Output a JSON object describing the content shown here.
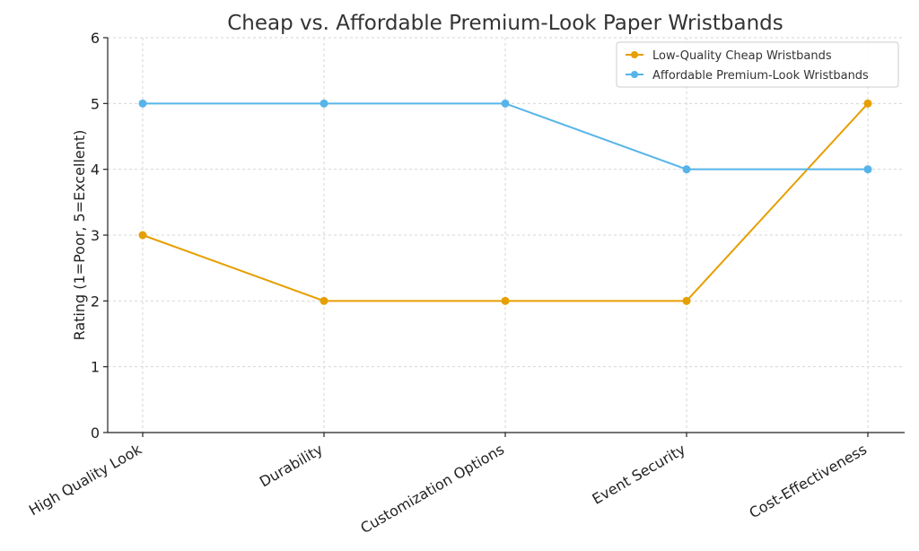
{
  "chart_data": {
    "type": "line",
    "title": "Cheap vs. Affordable Premium-Look Paper Wristbands",
    "xlabel": "",
    "ylabel": "Rating (1=Poor, 5=Excellent)",
    "categories": [
      "High Quality Look",
      "Durability",
      "Customization Options",
      "Event Security",
      "Cost-Effectiveness"
    ],
    "ylim": [
      0,
      6
    ],
    "yticks": [
      "0",
      "1",
      "2",
      "3",
      "4",
      "5",
      "6"
    ],
    "grid": true,
    "legend_position": "top-right",
    "series": [
      {
        "name": "Low-Quality Cheap Wristbands",
        "color": "#E69F00",
        "values": [
          3,
          2,
          2,
          2,
          5
        ]
      },
      {
        "name": "Affordable Premium-Look Wristbands",
        "color": "#56B4E9",
        "values": [
          5,
          5,
          5,
          4,
          4
        ]
      }
    ]
  }
}
